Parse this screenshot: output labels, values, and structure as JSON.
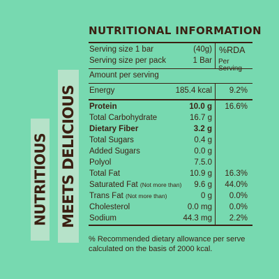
{
  "side_text": {
    "line1": "NUTRITIOUS",
    "line2": "MEETS DELICIOUS"
  },
  "title": "NUTRITIONAL INFORMATION",
  "serving": {
    "size_label": "Serving size 1 bar",
    "size_value": "(40g)",
    "per_pack_label": "Serving size per pack",
    "per_pack_value": "1 Bar",
    "rda_header": "%RDA",
    "rda_sub": "Per Serving"
  },
  "amount_header": "Amount per serving",
  "rows": [
    {
      "name": "Energy",
      "note": "",
      "amount": "185.4 kcal",
      "rda": "9.2%",
      "bold": false
    },
    {
      "name": "Protein",
      "note": "",
      "amount": "10.0 g",
      "rda": "16.6%",
      "bold": true
    },
    {
      "name": "Total Carbohydrate",
      "note": "",
      "amount": "16.7 g",
      "rda": "",
      "bold": false
    },
    {
      "name": "Dietary Fiber",
      "note": "",
      "amount": "3.2 g",
      "rda": "",
      "bold": true
    },
    {
      "name": "Total Sugars",
      "note": "",
      "amount": "0.4 g",
      "rda": "",
      "bold": false
    },
    {
      "name": "Added Sugars",
      "note": "",
      "amount": "0.0 g",
      "rda": "",
      "bold": false
    },
    {
      "name": "Polyol",
      "note": "",
      "amount": "7.5.0",
      "rda": "",
      "bold": false
    },
    {
      "name": "Total Fat",
      "note": "",
      "amount": "10.9 g",
      "rda": "16.3%",
      "bold": false
    },
    {
      "name": "Saturated Fat",
      "note": "(Not more than)",
      "amount": "9.6 g",
      "rda": "44.0%",
      "bold": false
    },
    {
      "name": "Trans Fat",
      "note": "(Not more than)",
      "amount": "0 g",
      "rda": "0.0%",
      "bold": false
    },
    {
      "name": "Cholesterol",
      "note": "",
      "amount": "0.0 mg",
      "rda": "0.0%",
      "bold": false
    },
    {
      "name": "Sodium",
      "note": "",
      "amount": "44.3 mg",
      "rda": "2.2%",
      "bold": false
    }
  ],
  "footnote": "% Recommended dietary allowance per serve calculated on the basis of 2000 kcal.",
  "colors": {
    "background": "#77d9b0",
    "side_band": "#b6e2c9",
    "text": "#3b1f12"
  }
}
